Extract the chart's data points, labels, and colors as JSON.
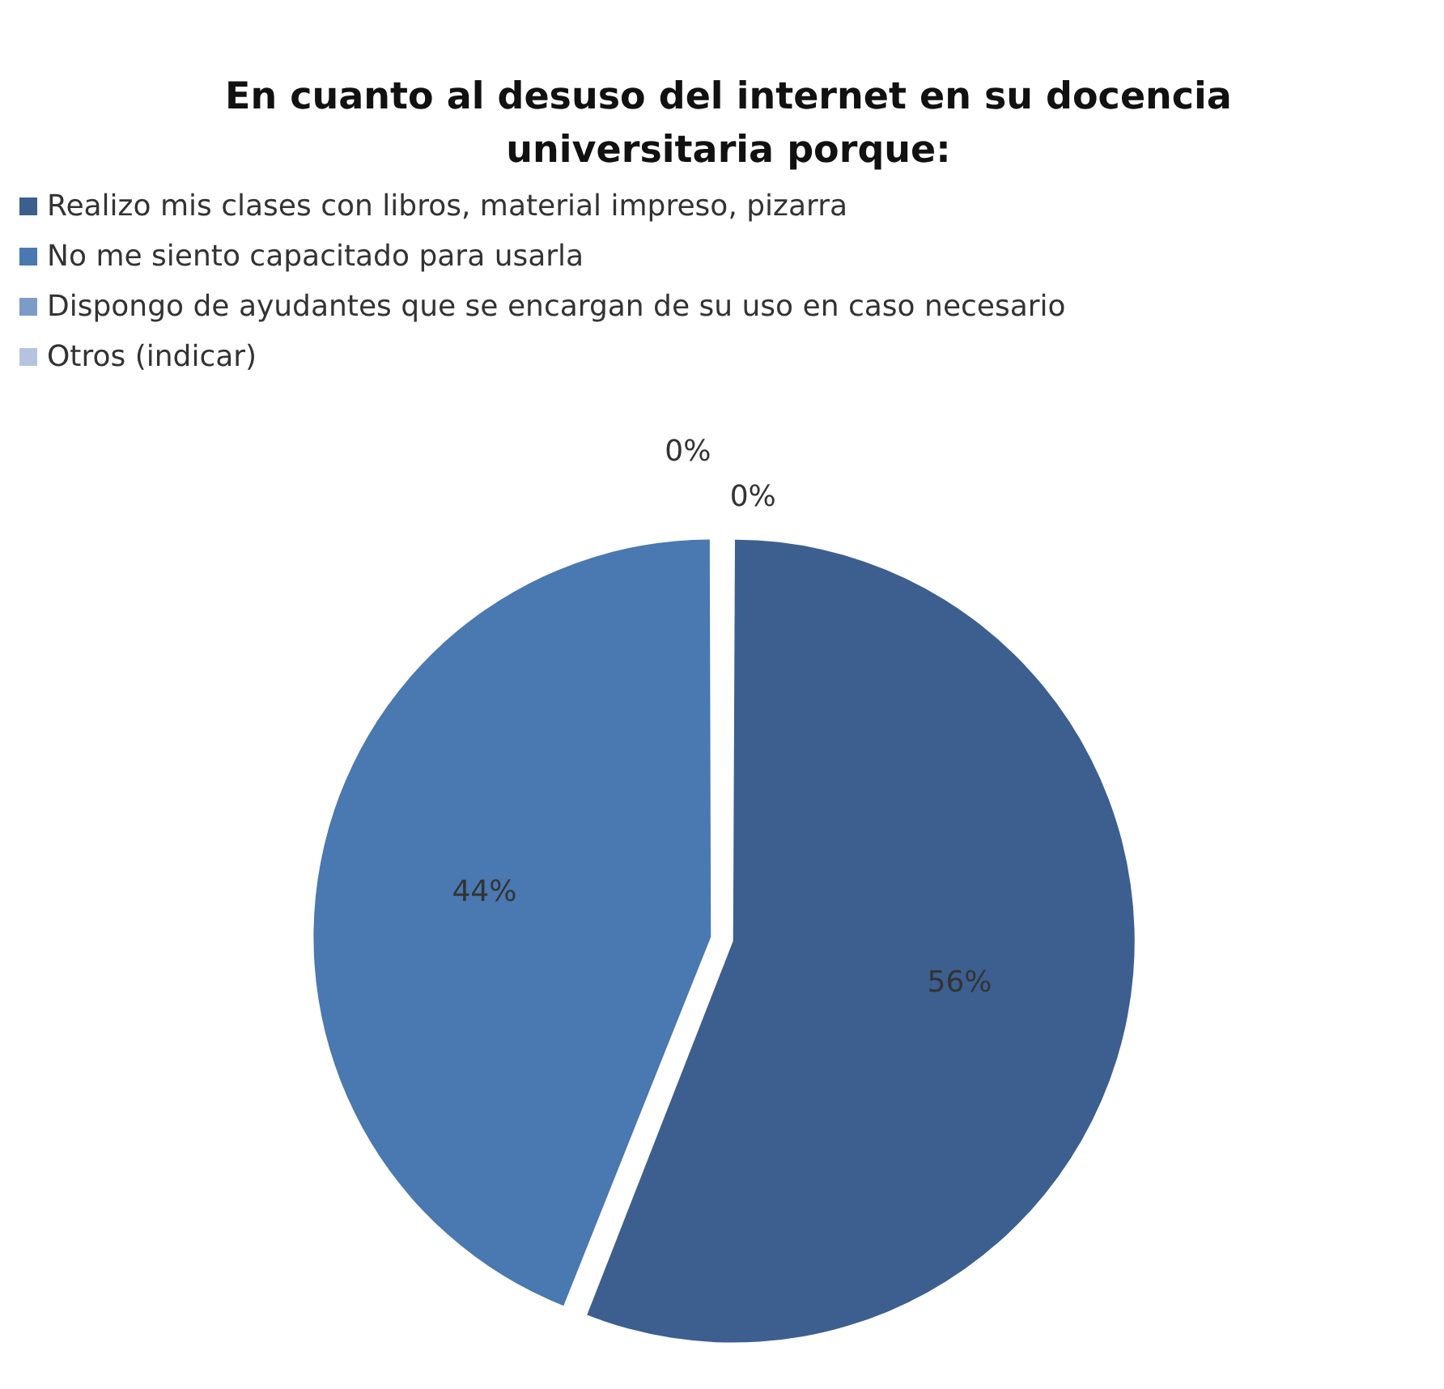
{
  "chart_data": {
    "type": "pie",
    "title": "En cuanto al desuso del internet en su docencia universitaria porque:",
    "categories": [
      "Realizo mis clases con libros, material impreso, pizarra",
      "No me siento capacitado para usarla",
      "Dispongo de ayudantes que se encargan de su uso en caso necesario",
      "Otros (indicar)"
    ],
    "values": [
      56,
      44,
      0,
      0
    ],
    "value_labels": [
      "56%",
      "44%",
      "0%",
      "0%"
    ],
    "colors": [
      "#3c5f8f",
      "#4a78b0",
      "#7d9bc8",
      "#b4c4de"
    ],
    "legend": "top left"
  }
}
